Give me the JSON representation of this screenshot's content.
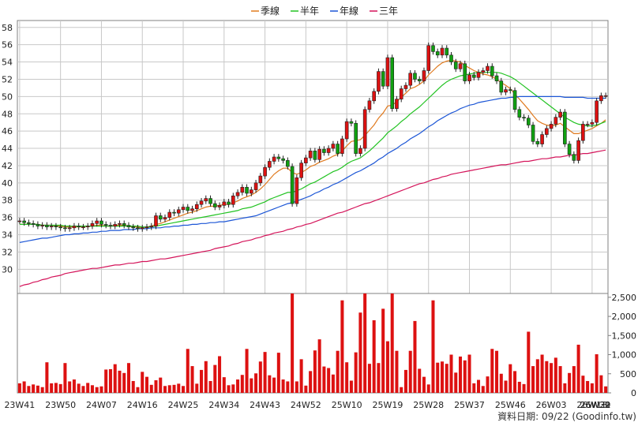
{
  "legend": [
    {
      "name": "季線",
      "color": "#e07a1f"
    },
    {
      "name": "半年",
      "color": "#22c322"
    },
    {
      "name": "年線",
      "color": "#1c56d6"
    },
    {
      "name": "三年",
      "color": "#d4145a"
    }
  ],
  "colors": {
    "up": "#dd1111",
    "down": "#10a010",
    "volume": "#dd1111",
    "grid": "#c8c8c8",
    "frame": "#808080"
  },
  "footer": "資料日期: 09/22  (Goodinfo.tw)",
  "chart_data": [
    {
      "type": "candlestick",
      "title": "",
      "frequency": "weekly",
      "x_tick_labels": [
        "23W41",
        "23W50",
        "24W07",
        "24W16",
        "24W25",
        "24W34",
        "24W43",
        "24W52",
        "25W10",
        "25W19",
        "25W28",
        "25W37",
        "25W46",
        "26W03",
        "26W13",
        "26W22",
        "26W31",
        "26W39"
      ],
      "y_ticks": [
        30,
        32,
        34,
        36,
        38,
        40,
        42,
        44,
        46,
        48,
        50,
        52,
        54,
        56,
        58
      ],
      "ylim": [
        27.2,
        58.8
      ],
      "grid": true,
      "legend_position": "top-center",
      "closes": [
        35.6,
        35.4,
        35.3,
        35.2,
        35.0,
        35.1,
        34.9,
        35.0,
        34.9,
        34.8,
        34.7,
        34.8,
        35.0,
        34.9,
        34.9,
        35.0,
        35.3,
        35.6,
        35.2,
        35.1,
        35.0,
        35.2,
        35.3,
        35.1,
        34.9,
        34.8,
        34.7,
        34.8,
        34.9,
        35.0,
        36.2,
        35.8,
        36.0,
        36.6,
        36.5,
        36.9,
        37.2,
        36.8,
        37.0,
        37.5,
        37.9,
        38.2,
        37.6,
        37.2,
        37.4,
        37.8,
        37.5,
        38.5,
        38.9,
        39.5,
        38.8,
        39.2,
        40.0,
        40.8,
        41.8,
        42.5,
        43.0,
        42.8,
        42.6,
        41.9,
        37.6,
        40.6,
        42.3,
        42.9,
        43.7,
        42.7,
        43.9,
        43.5,
        44.0,
        44.5,
        43.4,
        45.1,
        47.1,
        46.9,
        43.4,
        44.0,
        48.5,
        49.5,
        50.6,
        52.9,
        51.2,
        54.5,
        48.6,
        49.7,
        50.9,
        51.3,
        52.7,
        52.0,
        51.8,
        53.0,
        55.9,
        55.2,
        54.8,
        55.6,
        54.8,
        54.0,
        53.2,
        53.8,
        51.8,
        52.5,
        52.2,
        52.8,
        53.0,
        53.5,
        52.4,
        51.8,
        50.5,
        50.8,
        50.7,
        48.5,
        47.6,
        47.5,
        46.7,
        44.8,
        44.5,
        45.6,
        46.3,
        46.8,
        47.6,
        48.2,
        44.5,
        43.3,
        42.6,
        44.9,
        46.8,
        46.8,
        47.0,
        49.5,
        50.1,
        50.1
      ],
      "series": [
        {
          "name": "季線",
          "values": [
            35.2,
            35.2,
            35.2,
            35.2,
            35.2,
            35.1,
            35.1,
            35.1,
            35.0,
            35.0,
            34.9,
            34.9,
            34.9,
            34.9,
            34.9,
            35.0,
            35.0,
            35.1,
            35.1,
            35.0,
            35.0,
            35.1,
            35.1,
            35.1,
            35.0,
            34.9,
            34.9,
            34.8,
            34.9,
            35.0,
            35.2,
            35.3,
            35.5,
            35.7,
            35.9,
            36.1,
            36.3,
            36.5,
            36.6,
            36.8,
            37.0,
            37.2,
            37.3,
            37.3,
            37.4,
            37.5,
            37.5,
            37.7,
            37.9,
            38.2,
            38.4,
            38.6,
            38.9,
            39.3,
            39.8,
            40.4,
            41.0,
            41.4,
            41.7,
            41.7,
            41.2,
            41.0,
            41.2,
            41.5,
            41.9,
            42.1,
            42.4,
            42.6,
            42.8,
            43.1,
            43.3,
            43.7,
            44.3,
            44.8,
            44.9,
            45.0,
            45.5,
            46.1,
            46.7,
            47.5,
            48.1,
            48.9,
            49.0,
            49.4,
            49.9,
            50.4,
            50.9,
            51.1,
            51.4,
            51.8,
            52.5,
            53.0,
            53.5,
            53.9,
            54.1,
            54.2,
            54.1,
            54.0,
            53.6,
            53.3,
            53.0,
            52.8,
            52.6,
            52.5,
            52.3,
            52.0,
            51.6,
            51.3,
            50.9,
            50.3,
            49.7,
            49.1,
            48.5,
            47.8,
            47.2,
            46.9,
            46.7,
            46.6,
            46.7,
            46.9,
            46.5,
            46.1,
            45.7,
            45.7,
            45.9,
            46.1,
            46.3,
            46.6,
            46.9,
            47.3
          ]
        },
        {
          "name": "半年",
          "values": [
            35.2,
            35.2,
            35.2,
            35.2,
            35.2,
            35.1,
            35.1,
            35.1,
            35.1,
            35.1,
            35.0,
            35.0,
            35.0,
            35.0,
            35.0,
            35.0,
            35.0,
            35.0,
            35.0,
            35.0,
            35.0,
            35.0,
            35.0,
            35.0,
            35.0,
            35.0,
            35.0,
            34.9,
            34.9,
            34.9,
            35.0,
            35.1,
            35.2,
            35.3,
            35.4,
            35.5,
            35.6,
            35.7,
            35.8,
            35.9,
            36.0,
            36.1,
            36.2,
            36.3,
            36.4,
            36.5,
            36.6,
            36.7,
            36.8,
            37.0,
            37.1,
            37.2,
            37.4,
            37.6,
            37.8,
            38.1,
            38.3,
            38.5,
            38.7,
            38.9,
            38.9,
            39.1,
            39.3,
            39.6,
            39.9,
            40.1,
            40.4,
            40.7,
            41.0,
            41.3,
            41.5,
            41.8,
            42.2,
            42.5,
            42.7,
            42.9,
            43.3,
            43.7,
            44.2,
            44.7,
            45.2,
            45.8,
            46.2,
            46.6,
            47.1,
            47.5,
            48.0,
            48.4,
            48.8,
            49.3,
            49.8,
            50.3,
            50.8,
            51.3,
            51.7,
            52.0,
            52.2,
            52.4,
            52.5,
            52.6,
            52.7,
            52.8,
            52.8,
            52.8,
            52.8,
            52.8,
            52.7,
            52.5,
            52.3,
            52.0,
            51.6,
            51.2,
            50.8,
            50.4,
            50.0,
            49.6,
            49.2,
            48.8,
            48.4,
            48.0,
            47.6,
            47.3,
            47.0,
            46.8,
            46.7,
            46.6,
            46.6,
            46.7,
            46.9,
            47.1
          ]
        },
        {
          "name": "年線",
          "values": [
            33.1,
            33.2,
            33.3,
            33.4,
            33.5,
            33.6,
            33.6,
            33.7,
            33.8,
            33.9,
            34.0,
            34.0,
            34.1,
            34.1,
            34.2,
            34.2,
            34.3,
            34.3,
            34.4,
            34.4,
            34.5,
            34.5,
            34.5,
            34.6,
            34.6,
            34.6,
            34.7,
            34.7,
            34.7,
            34.8,
            34.8,
            34.8,
            34.9,
            34.9,
            35.0,
            35.0,
            35.1,
            35.1,
            35.2,
            35.2,
            35.3,
            35.3,
            35.4,
            35.4,
            35.5,
            35.5,
            35.6,
            35.7,
            35.8,
            35.9,
            36.0,
            36.1,
            36.2,
            36.4,
            36.6,
            36.8,
            37.0,
            37.2,
            37.4,
            37.6,
            37.7,
            37.9,
            38.1,
            38.3,
            38.5,
            38.8,
            39.0,
            39.3,
            39.5,
            39.8,
            40.0,
            40.3,
            40.6,
            40.9,
            41.2,
            41.4,
            41.7,
            42.0,
            42.3,
            42.7,
            43.0,
            43.4,
            43.7,
            44.0,
            44.4,
            44.7,
            45.1,
            45.4,
            45.7,
            46.1,
            46.5,
            46.8,
            47.2,
            47.5,
            47.8,
            48.1,
            48.3,
            48.6,
            48.8,
            49.0,
            49.1,
            49.3,
            49.4,
            49.5,
            49.6,
            49.7,
            49.8,
            49.8,
            49.9,
            49.9,
            50.0,
            50.0,
            50.0,
            50.0,
            50.0,
            50.0,
            50.0,
            50.0,
            50.0,
            50.0,
            49.9,
            49.9,
            49.9,
            49.9,
            49.9,
            49.8,
            49.8,
            49.8,
            49.8,
            49.8
          ]
        },
        {
          "name": "三年",
          "values": [
            28.0,
            28.2,
            28.3,
            28.5,
            28.6,
            28.8,
            28.9,
            29.1,
            29.2,
            29.3,
            29.5,
            29.6,
            29.7,
            29.8,
            29.9,
            30.0,
            30.1,
            30.1,
            30.2,
            30.3,
            30.4,
            30.5,
            30.5,
            30.6,
            30.7,
            30.7,
            30.8,
            30.9,
            30.9,
            31.0,
            31.1,
            31.2,
            31.2,
            31.3,
            31.4,
            31.5,
            31.6,
            31.7,
            31.8,
            31.9,
            32.0,
            32.1,
            32.2,
            32.4,
            32.5,
            32.6,
            32.7,
            32.9,
            33.0,
            33.2,
            33.3,
            33.4,
            33.6,
            33.7,
            33.9,
            34.0,
            34.2,
            34.3,
            34.4,
            34.6,
            34.7,
            34.9,
            35.0,
            35.2,
            35.3,
            35.5,
            35.7,
            35.9,
            36.1,
            36.3,
            36.5,
            36.6,
            36.8,
            37.0,
            37.2,
            37.4,
            37.6,
            37.7,
            37.9,
            38.1,
            38.3,
            38.5,
            38.7,
            38.9,
            39.1,
            39.3,
            39.5,
            39.7,
            39.9,
            40.0,
            40.2,
            40.4,
            40.5,
            40.7,
            40.8,
            41.0,
            41.1,
            41.2,
            41.3,
            41.4,
            41.5,
            41.6,
            41.7,
            41.8,
            41.9,
            42.0,
            42.1,
            42.1,
            42.2,
            42.3,
            42.4,
            42.5,
            42.5,
            42.6,
            42.7,
            42.8,
            42.8,
            42.9,
            43.0,
            43.0,
            43.1,
            43.2,
            43.2,
            43.3,
            43.4,
            43.4,
            43.5,
            43.6,
            43.7,
            43.8
          ]
        }
      ]
    },
    {
      "type": "bar",
      "title": "",
      "y_ticks": [
        0,
        500,
        1000,
        1500,
        2000,
        2500
      ],
      "y_tick_labels": [
        "0",
        "500",
        "1,000",
        "1,500",
        "2,000",
        "2,500"
      ],
      "ylim": [
        0,
        2600
      ],
      "values": [
        250,
        300,
        180,
        220,
        190,
        150,
        800,
        250,
        260,
        230,
        780,
        300,
        350,
        240,
        180,
        260,
        200,
        150,
        170,
        610,
        620,
        750,
        580,
        520,
        780,
        310,
        150,
        550,
        420,
        210,
        330,
        400,
        180,
        200,
        210,
        240,
        180,
        1150,
        700,
        240,
        600,
        830,
        310,
        730,
        960,
        410,
        200,
        220,
        350,
        470,
        1150,
        380,
        510,
        820,
        1070,
        460,
        400,
        1050,
        350,
        300,
        2600,
        300,
        880,
        190,
        570,
        1110,
        1400,
        690,
        650,
        480,
        1100,
        2420,
        800,
        320,
        1060,
        2100,
        2600,
        760,
        1900,
        780,
        2200,
        1350,
        2600,
        1100,
        150,
        600,
        1100,
        1880,
        630,
        420,
        220,
        2420,
        790,
        820,
        760,
        1000,
        530,
        950,
        850,
        1000,
        250,
        340,
        180,
        430,
        1150,
        1100,
        500,
        320,
        750,
        570,
        290,
        230,
        1600,
        700,
        880,
        1000,
        830,
        780,
        920,
        700,
        250,
        520,
        700,
        1260,
        450,
        310,
        250,
        1010,
        460,
        170
      ]
    }
  ]
}
